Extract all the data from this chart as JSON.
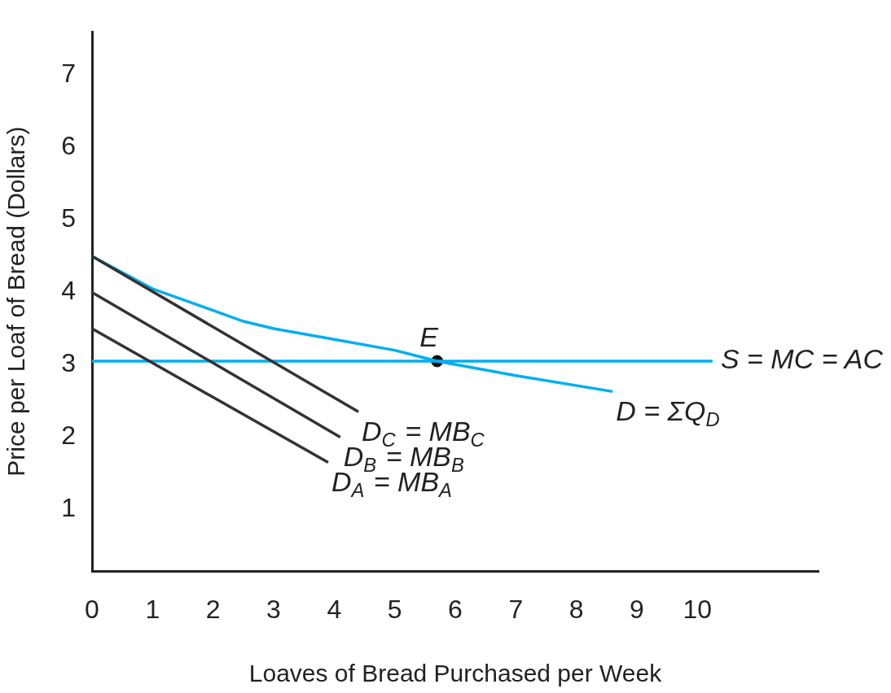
{
  "chart_data": {
    "type": "line",
    "xlabel": "Loaves of Bread Purchased per Week",
    "ylabel": "Price per Loaf of Bread (Dollars)",
    "xlim": [
      0,
      12
    ],
    "xticks": [
      0,
      1,
      2,
      3,
      4,
      5,
      6,
      7,
      8,
      9,
      10
    ],
    "ylim": [
      0.15,
      7.6
    ],
    "yticks": [
      1,
      2,
      3,
      4,
      5,
      6,
      7
    ],
    "grid": false,
    "legend": false,
    "marker": "none",
    "line_style": "solid",
    "series": [
      {
        "name": "D$_{A}$ = MB$_{A}$",
        "color": "#333333",
        "x": [
          0,
          3.9
        ],
        "values": [
          3.5,
          1.65
        ]
      },
      {
        "name": "D$_{B}$ = MB$_{B}$",
        "color": "#333333",
        "x": [
          0,
          4.1
        ],
        "values": [
          4,
          2
        ]
      },
      {
        "name": "D$_{C}$ = MB$_{C}$",
        "color": "#333333",
        "x": [
          0,
          4.4
        ],
        "values": [
          4.5,
          2.35
        ]
      },
      {
        "name": "D = ΣQ$_{D}$",
        "color": "#00aeef",
        "x": [
          0,
          1,
          1.5,
          2,
          2.5,
          3,
          4,
          5,
          5.7,
          7,
          8.6
        ],
        "values": [
          4.5,
          4.05,
          3.9,
          3.75,
          3.6,
          3.5,
          3.35,
          3.2,
          3.05,
          2.85,
          2.63
        ]
      },
      {
        "name": "S = MC = AC",
        "color": "#00aeef",
        "x": [
          0,
          10.25
        ],
        "values": [
          3.05,
          3.05
        ]
      },
      {
        "type": "scatter",
        "marker": "circle",
        "color": "#111111",
        "x": [
          5.7
        ],
        "values": [
          3.05
        ]
      }
    ],
    "annotations": [
      {
        "text": "E",
        "x": 5.7,
        "y": 3.05
      }
    ]
  }
}
